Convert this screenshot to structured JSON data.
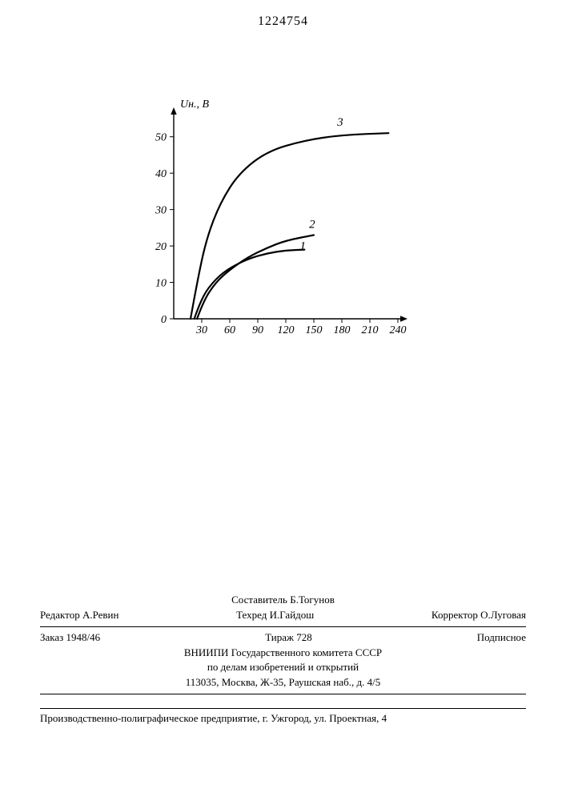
{
  "doc_number": "1224754",
  "chart": {
    "type": "line",
    "ylabel": "Uн., В",
    "background_color": "#ffffff",
    "axis_color": "#000000",
    "line_color": "#000000",
    "line_width": 2.2,
    "label_fontsize": 14,
    "tick_fontsize": 14,
    "xlim": [
      0,
      240
    ],
    "ylim": [
      0,
      55
    ],
    "xticks": [
      30,
      60,
      90,
      120,
      150,
      180,
      210,
      240
    ],
    "yticks": [
      0,
      10,
      20,
      30,
      40,
      50
    ],
    "series": [
      {
        "label": "1",
        "points": [
          [
            22,
            0
          ],
          [
            30,
            6
          ],
          [
            45,
            11
          ],
          [
            60,
            14
          ],
          [
            80,
            16.5
          ],
          [
            100,
            18
          ],
          [
            120,
            18.8
          ],
          [
            140,
            19
          ]
        ]
      },
      {
        "label": "2",
        "points": [
          [
            25,
            0
          ],
          [
            32,
            5
          ],
          [
            45,
            10
          ],
          [
            60,
            13.5
          ],
          [
            80,
            17
          ],
          [
            100,
            19.5
          ],
          [
            120,
            21.5
          ],
          [
            150,
            23
          ]
        ]
      },
      {
        "label": "3",
        "points": [
          [
            18,
            0
          ],
          [
            25,
            10
          ],
          [
            35,
            22
          ],
          [
            50,
            32
          ],
          [
            70,
            40
          ],
          [
            100,
            46
          ],
          [
            140,
            49
          ],
          [
            180,
            50.5
          ],
          [
            230,
            51
          ]
        ]
      }
    ],
    "series_label_positions": {
      "1": [
        135,
        19
      ],
      "2": [
        145,
        25
      ],
      "3": [
        175,
        53
      ]
    },
    "arrowhead_size": 6
  },
  "footer": {
    "compiler_line": "Составитель Б.Тогунов",
    "editor": "Редактор А.Ревин",
    "techred": "Техред И.Гайдош",
    "corrector": "Корректор О.Луговая",
    "order": "Заказ 1948/46",
    "tirazh": "Тираж 728",
    "podpisnoe": "Подписное",
    "org1": "ВНИИПИ Государственного комитета СССР",
    "org2": "по делам изобретений и открытий",
    "address": "113035, Москва, Ж-35, Раушская наб., д. 4/5",
    "printer": "Производственно-полиграфическое предприятие, г. Ужгород, ул. Проектная, 4"
  }
}
